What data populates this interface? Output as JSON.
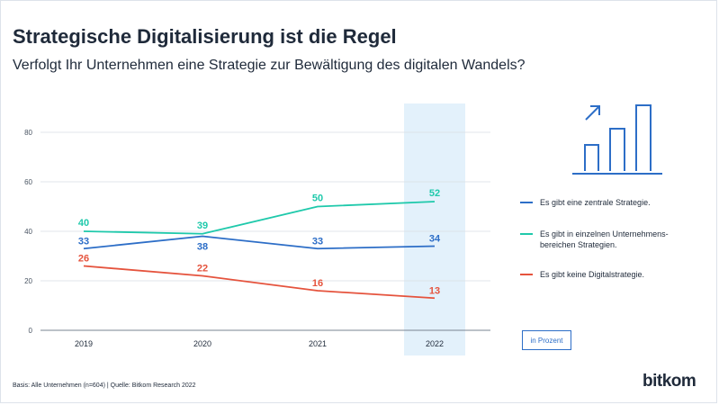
{
  "header": {
    "title": "Strategische Digitalisierung ist die Regel",
    "subtitle": "Verfolgt Ihr Unternehmen eine Strategie zur Bewältigung des digitalen Wandels?"
  },
  "chart_data": {
    "type": "line",
    "x": [
      "2019",
      "2020",
      "2021",
      "2022"
    ],
    "highlight_category": "2022",
    "ylim": [
      0,
      80
    ],
    "yticks": [
      0,
      20,
      40,
      60,
      80
    ],
    "grid": true,
    "legend_position": "right",
    "series": [
      {
        "name": "Es gibt eine zentrale Strategie.",
        "values": [
          33,
          38,
          33,
          34
        ],
        "color": "#2d6ec7"
      },
      {
        "name": "Es gibt in einzelnen Unternehmens-bereichen Strategien.",
        "values": [
          40,
          39,
          50,
          52
        ],
        "color": "#1fc9ab"
      },
      {
        "name": "Es gibt keine Digitalstrategie.",
        "values": [
          26,
          22,
          16,
          13
        ],
        "color": "#e5533d"
      }
    ]
  },
  "legend": {
    "items": [
      {
        "label": "Es gibt eine zentrale Strategie.",
        "color": "#2d6ec7"
      },
      {
        "label": "Es gibt in einzelnen Unternehmens-bereichen Strategien.",
        "color": "#1fc9ab"
      },
      {
        "label": "Es gibt keine Digitalstrategie.",
        "color": "#e5533d"
      }
    ]
  },
  "unit_label": "in Prozent",
  "decoration": {
    "icon": "bar-chart-growth-icon",
    "color": "#2d6ec7"
  },
  "footer": {
    "note": "Basis: Alle Unternehmen (n=604) | Quelle: Bitkom Research 2022",
    "logo": "bitkom"
  }
}
